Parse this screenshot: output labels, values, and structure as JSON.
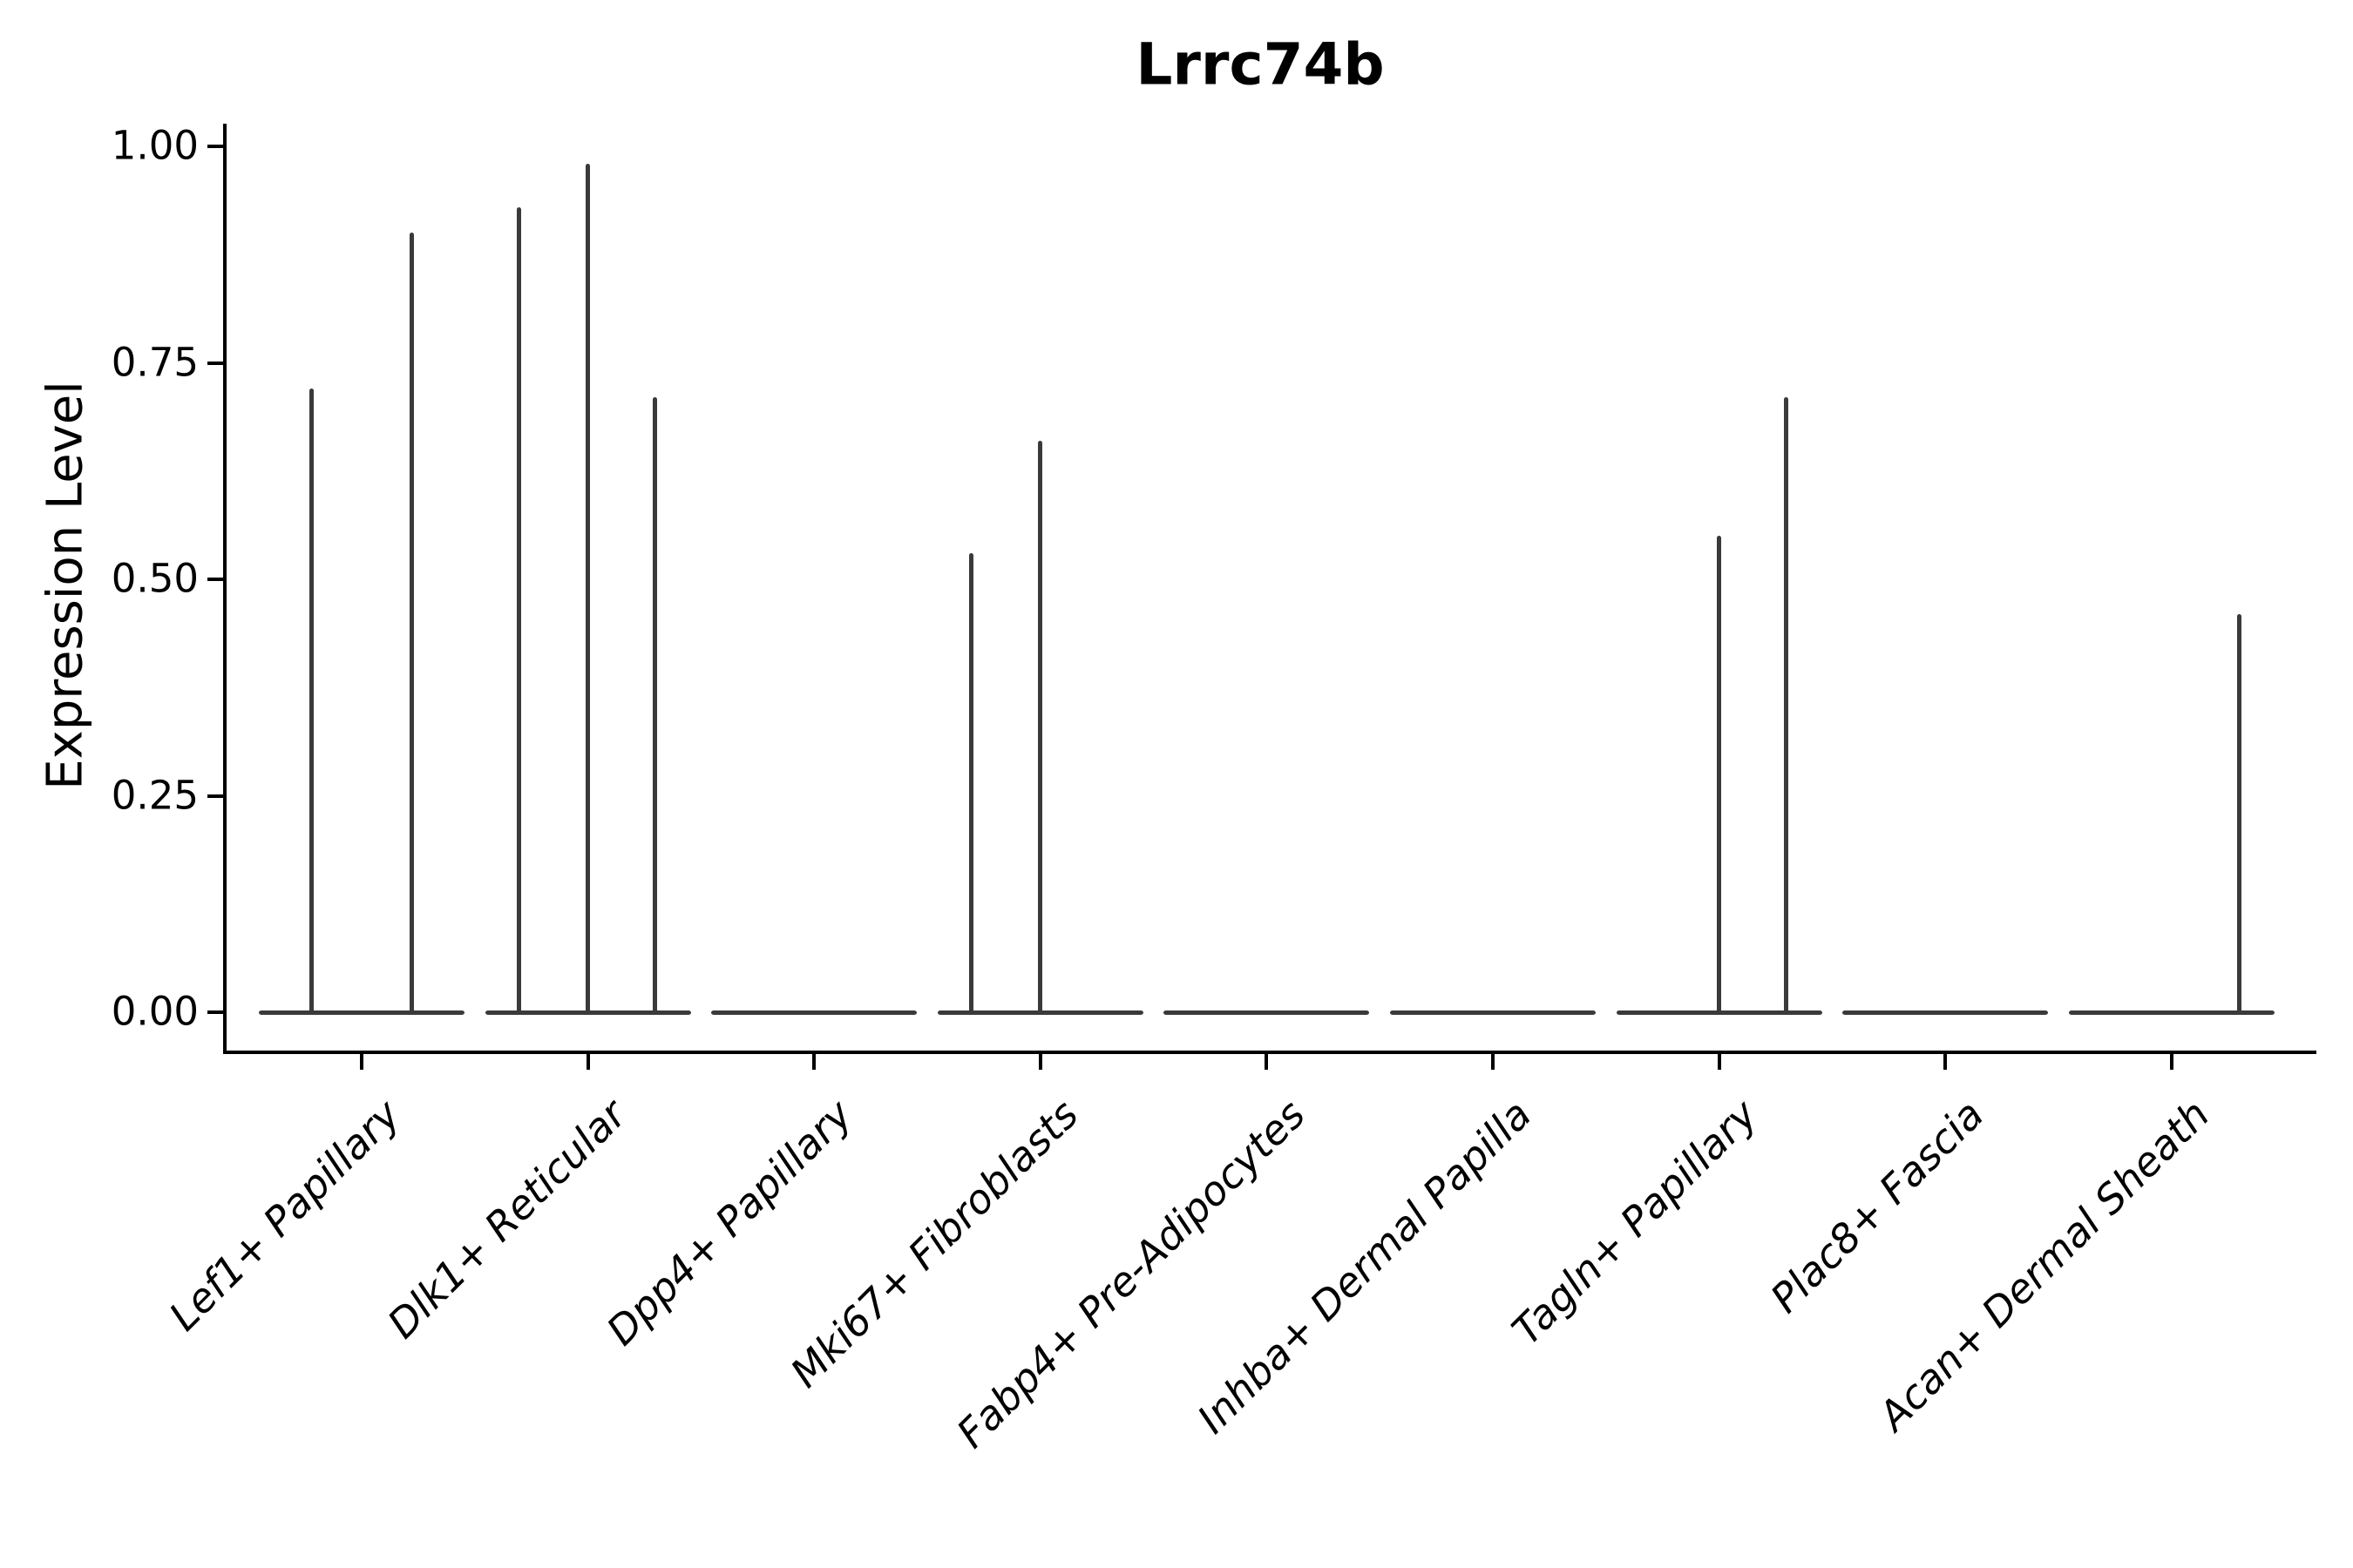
{
  "title": "Lrrc74b",
  "y_axis": {
    "label": "Expression Level",
    "tick_labels": [
      "0.00",
      "0.25",
      "0.50",
      "0.75",
      "1.00"
    ]
  },
  "chart_data": {
    "type": "violin",
    "title": "Lrrc74b",
    "xlabel": "",
    "ylabel": "Expression Level",
    "ylim": [
      0,
      1.0
    ],
    "yticks": [
      0.0,
      0.25,
      0.5,
      0.75,
      1.0
    ],
    "grid": false,
    "legend": "none",
    "description": "Violin plot of Lrrc74b expression per cluster; each violin is collapsed to a flat line at 0 with thin vertical spikes marking the few expressing cells (spike offset is horizontal position within the violin in px, value is expression level at spike top).",
    "categories": [
      "Lef1+ Papillary",
      "Dlk1+ Reticular",
      "Dpp4+ Papillary",
      "Mki67+ Fibroblasts",
      "Fabp4+ Pre-Adipocytes",
      "Inhba+ Dermal Papilla",
      "Tagln+ Papillary",
      "Plac8+ Fascia",
      "Acan+ Dermal Sheath"
    ],
    "series": [
      {
        "category": "Lef1+ Papillary",
        "baseline_value": 0.0,
        "spikes": [
          {
            "offset": -58,
            "value": 0.72
          },
          {
            "offset": 57,
            "value": 0.9
          }
        ]
      },
      {
        "category": "Dlk1+ Reticular",
        "baseline_value": 0.0,
        "spikes": [
          {
            "offset": -79,
            "value": 0.93
          },
          {
            "offset": 0,
            "value": 0.98
          },
          {
            "offset": 77,
            "value": 0.71
          }
        ]
      },
      {
        "category": "Dpp4+ Papillary",
        "baseline_value": 0.0,
        "spikes": []
      },
      {
        "category": "Mki67+ Fibroblasts",
        "baseline_value": 0.0,
        "spikes": [
          {
            "offset": -79,
            "value": 0.53
          },
          {
            "offset": 0,
            "value": 0.66
          }
        ]
      },
      {
        "category": "Fabp4+ Pre-Adipocytes",
        "baseline_value": 0.0,
        "spikes": []
      },
      {
        "category": "Inhba+ Dermal Papilla",
        "baseline_value": 0.0,
        "spikes": []
      },
      {
        "category": "Tagln+ Papillary",
        "baseline_value": 0.0,
        "spikes": [
          {
            "offset": 0,
            "value": 0.55
          },
          {
            "offset": 77,
            "value": 0.71
          }
        ]
      },
      {
        "category": "Plac8+ Fascia",
        "baseline_value": 0.0,
        "spikes": []
      },
      {
        "category": "Acan+ Dermal Sheath",
        "baseline_value": 0.0,
        "spikes": [
          {
            "offset": 78,
            "value": 0.46
          }
        ]
      }
    ],
    "style": {
      "violin_color": "#3a3a3a",
      "axis_color": "#000000",
      "text_color": "#000000",
      "background_color": "#ffffff"
    }
  }
}
